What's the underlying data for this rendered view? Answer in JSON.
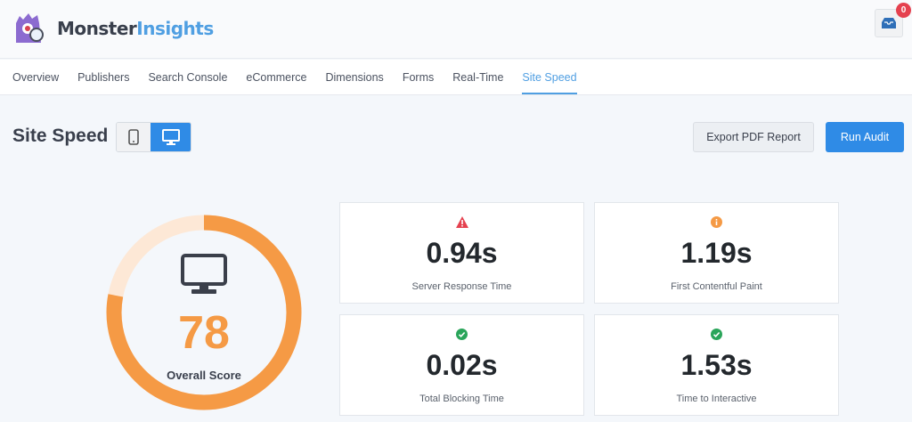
{
  "brand": {
    "part1": "Monster",
    "part2": "Insights"
  },
  "notifications": {
    "count": "0"
  },
  "nav": [
    {
      "label": "Overview"
    },
    {
      "label": "Publishers"
    },
    {
      "label": "Search Console"
    },
    {
      "label": "eCommerce"
    },
    {
      "label": "Dimensions"
    },
    {
      "label": "Forms"
    },
    {
      "label": "Real-Time"
    },
    {
      "label": "Site Speed",
      "active": true
    }
  ],
  "page": {
    "title": "Site Speed",
    "device_selected": "desktop",
    "export_label": "Export PDF Report",
    "run_label": "Run Audit"
  },
  "score": {
    "value": "78",
    "percent": 78,
    "label": "Overall Score",
    "color": "#f59a45",
    "track_color": "#fde8d6"
  },
  "metrics": [
    {
      "value": "0.94s",
      "label": "Server Response Time",
      "status": "warning",
      "icon": "warning-triangle-icon",
      "color": "#e5414f"
    },
    {
      "value": "1.19s",
      "label": "First Contentful Paint",
      "status": "info",
      "icon": "info-circle-icon",
      "color": "#f59a45"
    },
    {
      "value": "0.02s",
      "label": "Total Blocking Time",
      "status": "good",
      "icon": "check-circle-icon",
      "color": "#2aa55a"
    },
    {
      "value": "1.53s",
      "label": "Time to Interactive",
      "status": "good",
      "icon": "check-circle-icon",
      "color": "#2aa55a"
    }
  ]
}
